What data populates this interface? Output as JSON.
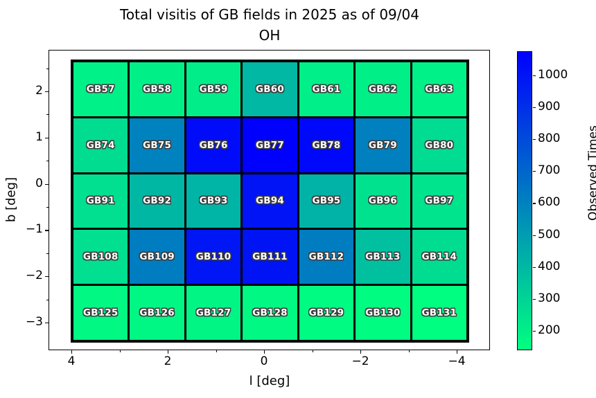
{
  "title": {
    "line1": "Total visitis of GB fields in 2025 as of 09/04",
    "line2": "OH"
  },
  "axes": {
    "xlabel": "l [deg]",
    "ylabel": "b [deg]"
  },
  "chart_data": {
    "type": "heatmap",
    "title": "Total visitis of GB fields in 2025 as of 09/04 OH",
    "xlabel": "l [deg]",
    "ylabel": "b [deg]",
    "x_ticks": [
      4,
      2,
      0,
      -2,
      -4
    ],
    "y_ticks": [
      2,
      1,
      0,
      -1,
      -2,
      -3
    ],
    "x_axis_inverted": true,
    "grid": {
      "n_cols": 7,
      "n_rows": 5,
      "cell_size_deg": 1.2
    },
    "colormap": "winter_r",
    "color_low": "#00ff80",
    "color_high": "#0000ff",
    "colorbar": {
      "label": "Observed Times",
      "ticks": [
        200,
        300,
        400,
        500,
        600,
        700,
        800,
        900,
        1000
      ],
      "vmin": 140,
      "vmax": 1075
    },
    "rows": [
      {
        "b_center": 2.05,
        "cells": [
          {
            "name": "GB57",
            "value": 190
          },
          {
            "name": "GB58",
            "value": 195
          },
          {
            "name": "GB59",
            "value": 205
          },
          {
            "name": "GB60",
            "value": 400
          },
          {
            "name": "GB61",
            "value": 200
          },
          {
            "name": "GB62",
            "value": 195
          },
          {
            "name": "GB63",
            "value": 190
          }
        ]
      },
      {
        "b_center": 0.85,
        "cells": [
          {
            "name": "GB74",
            "value": 265
          },
          {
            "name": "GB75",
            "value": 600
          },
          {
            "name": "GB76",
            "value": 1030
          },
          {
            "name": "GB77",
            "value": 1075
          },
          {
            "name": "GB78",
            "value": 1045
          },
          {
            "name": "GB79",
            "value": 605
          },
          {
            "name": "GB80",
            "value": 270
          }
        ]
      },
      {
        "b_center": -0.35,
        "cells": [
          {
            "name": "GB91",
            "value": 255
          },
          {
            "name": "GB92",
            "value": 405
          },
          {
            "name": "GB93",
            "value": 410
          },
          {
            "name": "GB94",
            "value": 1000
          },
          {
            "name": "GB95",
            "value": 420
          },
          {
            "name": "GB96",
            "value": 245
          },
          {
            "name": "GB97",
            "value": 240
          }
        ]
      },
      {
        "b_center": -1.55,
        "cells": [
          {
            "name": "GB108",
            "value": 255
          },
          {
            "name": "GB109",
            "value": 620
          },
          {
            "name": "GB110",
            "value": 995
          },
          {
            "name": "GB111",
            "value": 1005
          },
          {
            "name": "GB112",
            "value": 615
          },
          {
            "name": "GB113",
            "value": 370
          },
          {
            "name": "GB114",
            "value": 265
          }
        ]
      },
      {
        "b_center": -2.75,
        "cells": [
          {
            "name": "GB125",
            "value": 165
          },
          {
            "name": "GB126",
            "value": 170
          },
          {
            "name": "GB127",
            "value": 175
          },
          {
            "name": "GB128",
            "value": 165
          },
          {
            "name": "GB129",
            "value": 155
          },
          {
            "name": "GB130",
            "value": 150
          },
          {
            "name": "GB131",
            "value": 140
          }
        ]
      }
    ]
  }
}
